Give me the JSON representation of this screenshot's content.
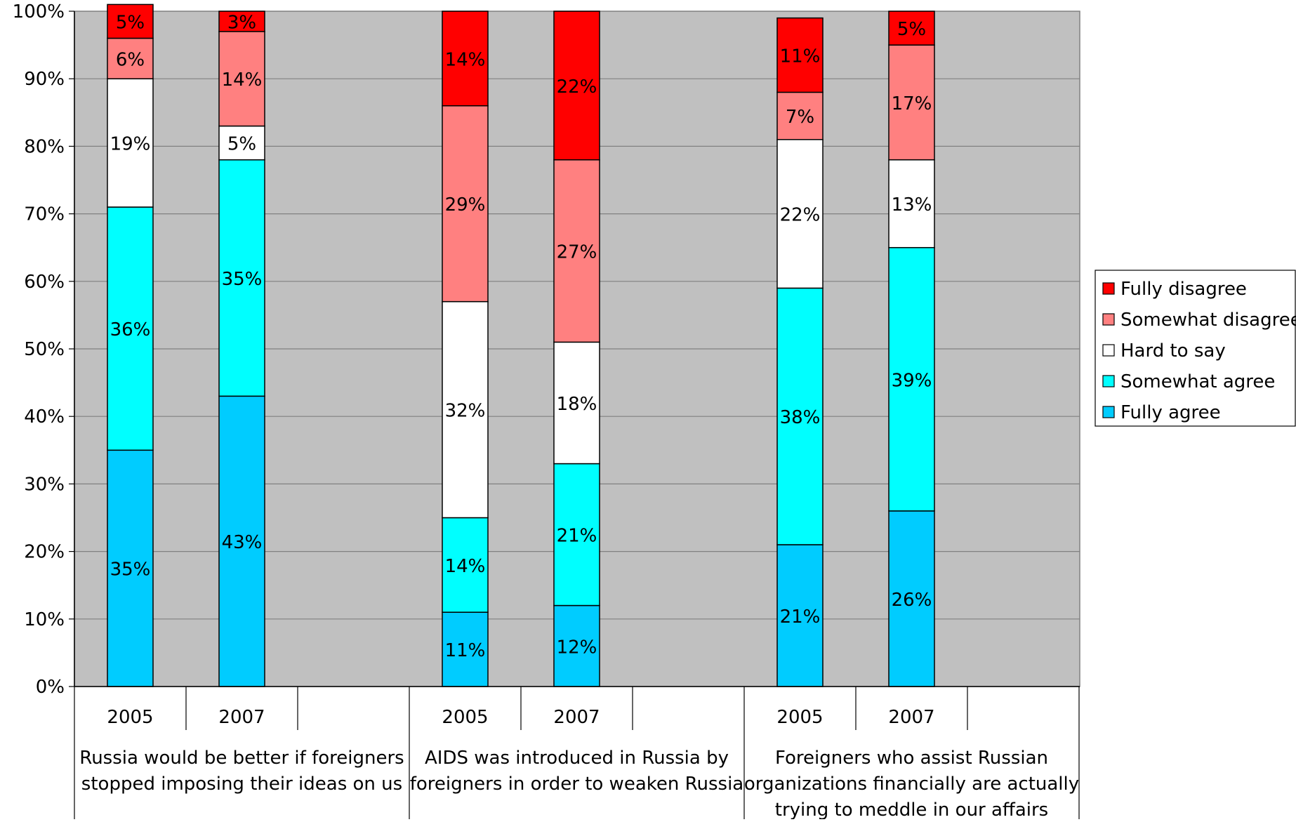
{
  "chart_data": {
    "type": "bar",
    "stacked": true,
    "percent_scale": true,
    "ylim": [
      0,
      100
    ],
    "y_ticks": [
      "0%",
      "10%",
      "20%",
      "30%",
      "40%",
      "50%",
      "60%",
      "70%",
      "80%",
      "90%",
      "100%"
    ],
    "grid": true,
    "legend_position": "right",
    "groups": [
      {
        "label": "Russia would be better if foreigners stopped imposing their ideas on us",
        "label_lines": [
          "Russia would be better if foreigners",
          "stopped imposing their ideas on us"
        ]
      },
      {
        "label": "AIDS was introduced in Russia by foreigners in order to weaken Russia",
        "label_lines": [
          "AIDS was introduced in Russia by",
          "foreigners in order to weaken Russia"
        ]
      },
      {
        "label": "Foreigners who assist Russian organizations financially are actually trying to meddle in our affairs",
        "label_lines": [
          "Foreigners who assist Russian",
          "organizations financially are actually",
          "trying to meddle in our affairs"
        ]
      }
    ],
    "categories": [
      "2005",
      "2007",
      "2005",
      "2007",
      "2005",
      "2007"
    ],
    "category_group": [
      0,
      0,
      1,
      1,
      2,
      2
    ],
    "series": [
      {
        "name": "Fully agree",
        "color": "#00CCFF",
        "values": [
          35,
          43,
          11,
          12,
          21,
          26
        ]
      },
      {
        "name": "Somewhat agree",
        "color": "#00FFFF",
        "values": [
          36,
          35,
          14,
          21,
          38,
          39
        ]
      },
      {
        "name": "Hard to say",
        "color": "#FFFFFF",
        "values": [
          19,
          5,
          32,
          18,
          22,
          13
        ]
      },
      {
        "name": "Somewhat disagree",
        "color": "#FF8080",
        "values": [
          6,
          14,
          29,
          27,
          7,
          17
        ]
      },
      {
        "name": "Fully disagree",
        "color": "#FF0000",
        "values": [
          5,
          3,
          14,
          22,
          11,
          5
        ]
      }
    ],
    "legend_order": [
      "Fully disagree",
      "Somewhat disagree",
      "Hard to say",
      "Somewhat agree",
      "Fully agree"
    ],
    "plot_background": "#C0C0C0"
  }
}
